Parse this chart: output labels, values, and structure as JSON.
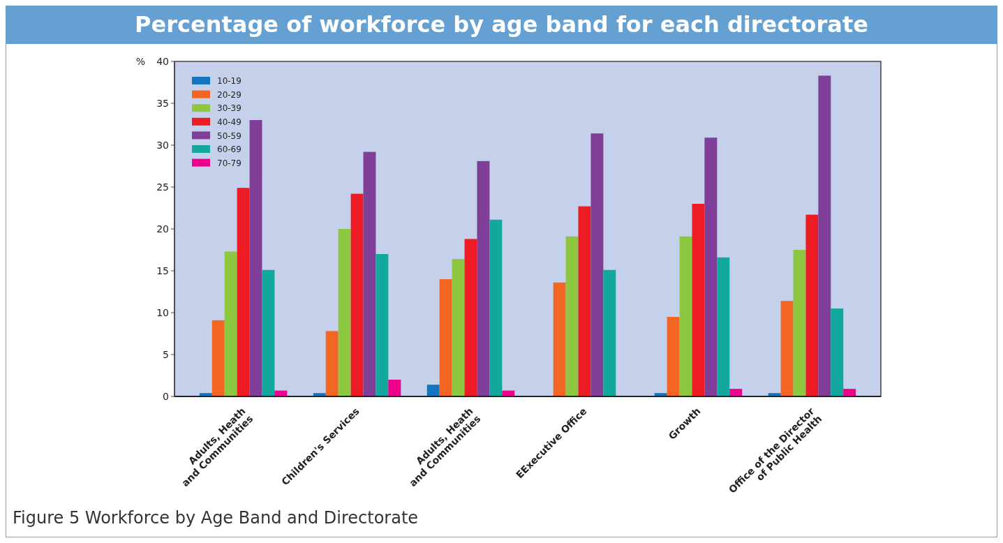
{
  "chart_data": {
    "type": "bar",
    "title": "Percentage of workforce by age band for each directorate",
    "ylabel": "%",
    "categories": [
      "Adults, Heath\nand Communities",
      "Children's Services",
      "Adults, Heath\nand Communities",
      "EExecutive Office",
      "Growth",
      "Office of the Director\nof Public Health"
    ],
    "series": [
      {
        "name": "10-19",
        "color": "#1474bf",
        "values": [
          0.4,
          0.4,
          1.4,
          null,
          0.4,
          0.4
        ]
      },
      {
        "name": "20-29",
        "color": "#f26522",
        "values": [
          9.1,
          7.8,
          14.0,
          13.6,
          9.5,
          11.4
        ]
      },
      {
        "name": "30-39",
        "color": "#8dc63f",
        "values": [
          17.3,
          20.0,
          16.4,
          19.1,
          19.1,
          17.5
        ]
      },
      {
        "name": "40-49",
        "color": "#ed1c24",
        "values": [
          24.9,
          24.2,
          18.8,
          22.7,
          23.0,
          21.7
        ]
      },
      {
        "name": "50-59",
        "color": "#7f3f98",
        "values": [
          33.0,
          29.2,
          28.1,
          31.4,
          30.9,
          38.3
        ]
      },
      {
        "name": "60-69",
        "color": "#12a89d",
        "values": [
          15.1,
          17.0,
          21.1,
          15.1,
          16.6,
          10.5
        ]
      },
      {
        "name": "70-79",
        "color": "#ec008c",
        "values": [
          0.7,
          2.0,
          0.7,
          null,
          0.9,
          0.9
        ]
      }
    ],
    "ylim": [
      0,
      40
    ],
    "yticks": [
      0,
      5,
      10,
      15,
      20,
      25,
      30,
      35,
      40
    ],
    "grid": false,
    "legend": "top left",
    "annotations": [
      "Figure 5  Workforce by Age Band and Directorate"
    ]
  }
}
